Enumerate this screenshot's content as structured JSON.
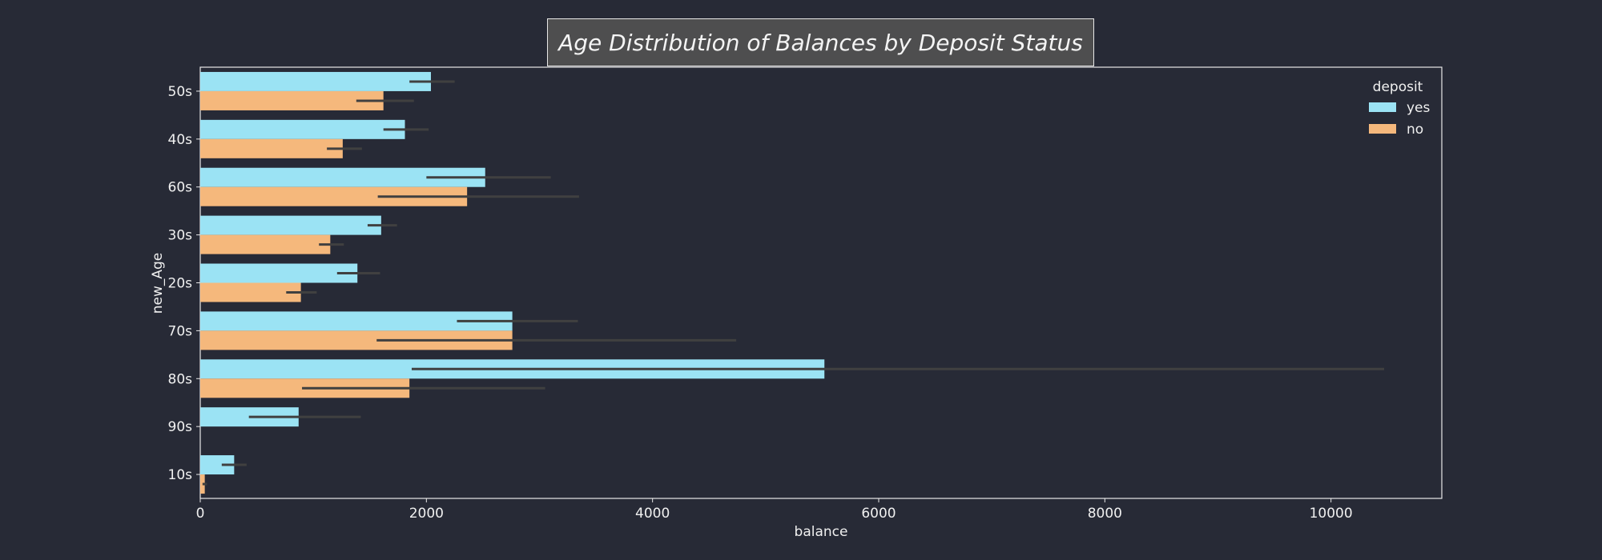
{
  "chart_data": {
    "type": "bar",
    "orientation": "horizontal",
    "title": "Age Distribution of Balances by Deposit Status",
    "xlabel": "balance",
    "ylabel": "new_Age",
    "categories": [
      "50s",
      "40s",
      "60s",
      "30s",
      "20s",
      "70s",
      "80s",
      "90s",
      "10s"
    ],
    "xlim": [
      0,
      10980
    ],
    "x_ticks": [
      0,
      2000,
      4000,
      6000,
      8000,
      10000
    ],
    "grid": false,
    "legend": {
      "title": "deposit",
      "placement": "top-right"
    },
    "series": [
      {
        "name": "yes",
        "color": "#9be3f4",
        "values": [
          2040,
          1810,
          2520,
          1600,
          1390,
          2760,
          5520,
          870,
          300
        ],
        "ci_low": [
          1850,
          1620,
          2000,
          1480,
          1210,
          2270,
          1870,
          430,
          190
        ],
        "ci_high": [
          2250,
          2020,
          3100,
          1740,
          1590,
          3340,
          10470,
          1420,
          410
        ]
      },
      {
        "name": "no",
        "color": "#f5b87c",
        "values": [
          1620,
          1260,
          2360,
          1150,
          890,
          2760,
          1850,
          null,
          40
        ],
        "ci_low": [
          1380,
          1120,
          1570,
          1050,
          760,
          1560,
          900,
          null,
          20
        ],
        "ci_high": [
          1890,
          1430,
          3350,
          1270,
          1030,
          4740,
          3050,
          null,
          60
        ]
      }
    ]
  }
}
